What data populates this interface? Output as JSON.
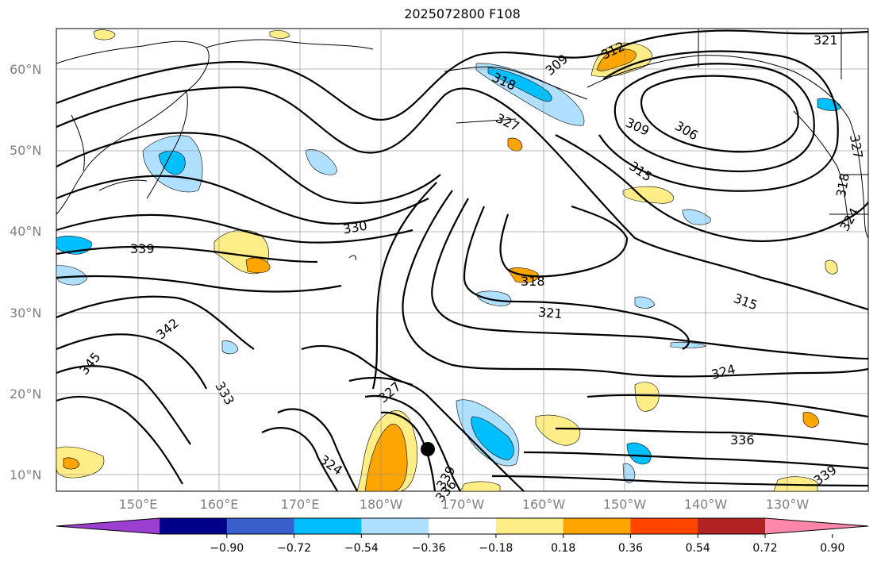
{
  "title": "2025072800 F108",
  "lat_labels": [
    "60°N",
    "50°N",
    "40°N",
    "30°N",
    "20°N",
    "10°N"
  ],
  "lon_labels": [
    "150°E",
    "160°E",
    "170°E",
    "180°W",
    "170°W",
    "160°W",
    "150°W",
    "140°W",
    "130°W"
  ],
  "contour_labels": [
    "321",
    "309",
    "312",
    "318",
    "327",
    "309",
    "306",
    "315",
    "318",
    "324",
    "327",
    "330",
    "339",
    "318",
    "321",
    "315",
    "342",
    "345",
    "324",
    "333",
    "327",
    "324",
    "339",
    "336",
    "336",
    "339"
  ],
  "colorbar": {
    "ticks": [
      "−0.90",
      "−0.72",
      "−0.54",
      "−0.36",
      "−0.18",
      "0.18",
      "0.36",
      "0.54",
      "0.72",
      "0.90"
    ],
    "colors": [
      "#9b3fd1",
      "#00008b",
      "#3a5fcd",
      "#00bfff",
      "#b0e0ff",
      "#ffffff",
      "#ffee88",
      "#ffa500",
      "#ff4500",
      "#b22222",
      "#ff88aa"
    ]
  }
}
